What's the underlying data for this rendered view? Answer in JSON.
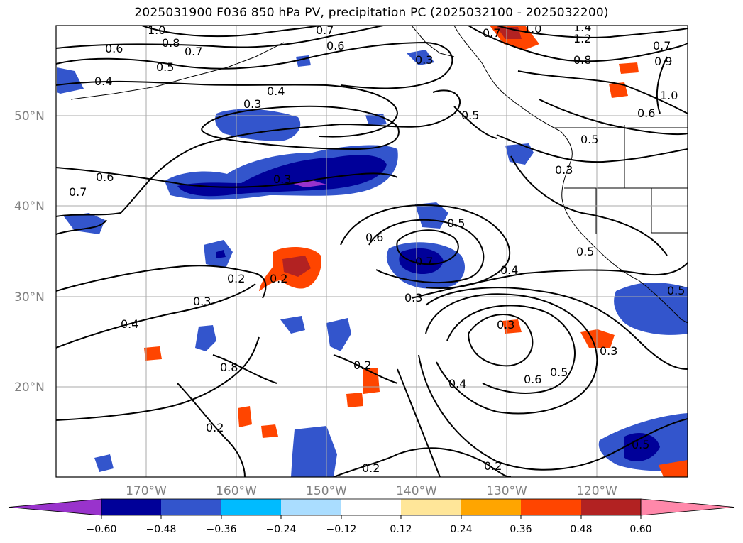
{
  "title": "2025031900 F036 850 hPa PV, precipitation PC (2025032100 - 2025032200)",
  "map": {
    "lat_labels": [
      "50°N",
      "40°N",
      "30°N",
      "20°N"
    ],
    "lon_labels": [
      "170°W",
      "160°W",
      "150°W",
      "140°W",
      "130°W",
      "120°W"
    ],
    "contour_labels": [
      "1.0",
      "0.8",
      "0.7",
      "0.6",
      "0.5",
      "0.4",
      "0.3",
      "0.7",
      "0.6",
      "0.4",
      "0.3",
      "0.7",
      "1.0",
      "1.4",
      "1.2",
      "0.8",
      "0.7",
      "0.9",
      "1.0",
      "0.6",
      "0.5",
      "0.5",
      "0.3",
      "0.6",
      "0.7",
      "0.3",
      "0.6",
      "0.5",
      "0.7",
      "0.4",
      "0.5",
      "0.2",
      "0.3",
      "0.3",
      "0.4",
      "0.3",
      "0.5",
      "0.6",
      "0.5",
      "0.4",
      "0.3",
      "0.8",
      "0.5",
      "0.2",
      "0.2",
      "0.2",
      "0.2",
      "0.2"
    ]
  },
  "colorbar": {
    "ticks": [
      "−0.60",
      "−0.48",
      "−0.36",
      "−0.24",
      "−0.12",
      "0.12",
      "0.24",
      "0.36",
      "0.48",
      "0.60"
    ],
    "colors": [
      "#9933cc",
      "#000099",
      "#3355cc",
      "#00bbff",
      "#aaddff",
      "#ffffff",
      "#ffe699",
      "#ffa500",
      "#ff4500",
      "#b22222",
      "#ff88aa"
    ]
  }
}
